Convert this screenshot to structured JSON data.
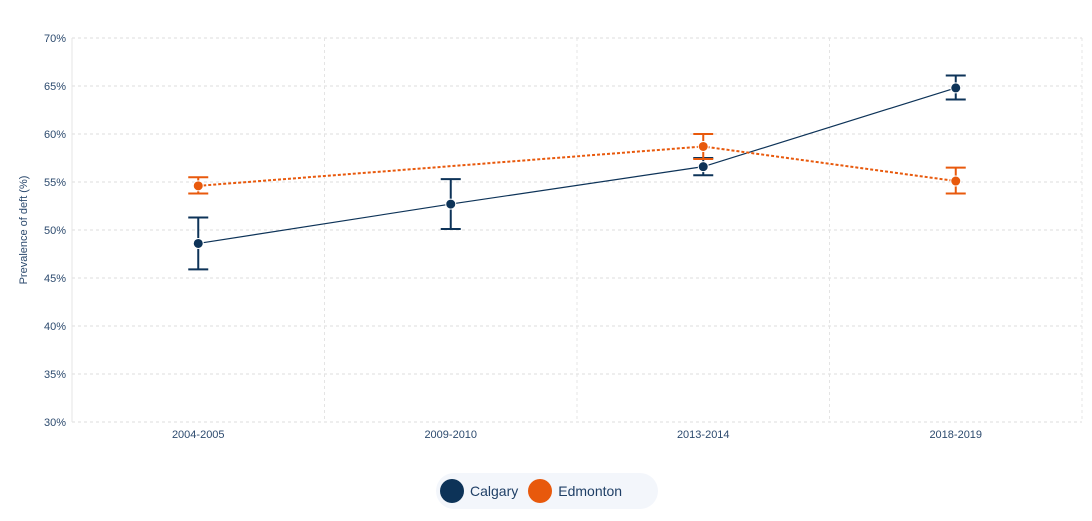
{
  "chart_data": {
    "type": "line",
    "title": "",
    "xlabel": "",
    "ylabel": "Prevalence of deft (%)",
    "categories": [
      "2004-2005",
      "2009-2010",
      "2013-2014",
      "2018-2019"
    ],
    "ylim": [
      30,
      70
    ],
    "yticks": [
      "30%",
      "35%",
      "40%",
      "45%",
      "50%",
      "55%",
      "60%",
      "65%",
      "70%"
    ],
    "grid": true,
    "legend_position": "bottom",
    "series": [
      {
        "name": "Calgary",
        "color": "#0d3358",
        "line_style": "solid",
        "values": [
          48.6,
          52.7,
          56.6,
          64.8
        ],
        "error_low": [
          45.9,
          50.1,
          55.7,
          63.6
        ],
        "error_high": [
          51.3,
          55.3,
          57.5,
          66.1
        ]
      },
      {
        "name": "Edmonton",
        "color": "#e8590c",
        "line_style": "dotted",
        "values": [
          54.6,
          null,
          58.7,
          55.1
        ],
        "error_low": [
          53.8,
          null,
          57.4,
          53.8
        ],
        "error_high": [
          55.5,
          null,
          60.0,
          56.5
        ]
      }
    ]
  }
}
